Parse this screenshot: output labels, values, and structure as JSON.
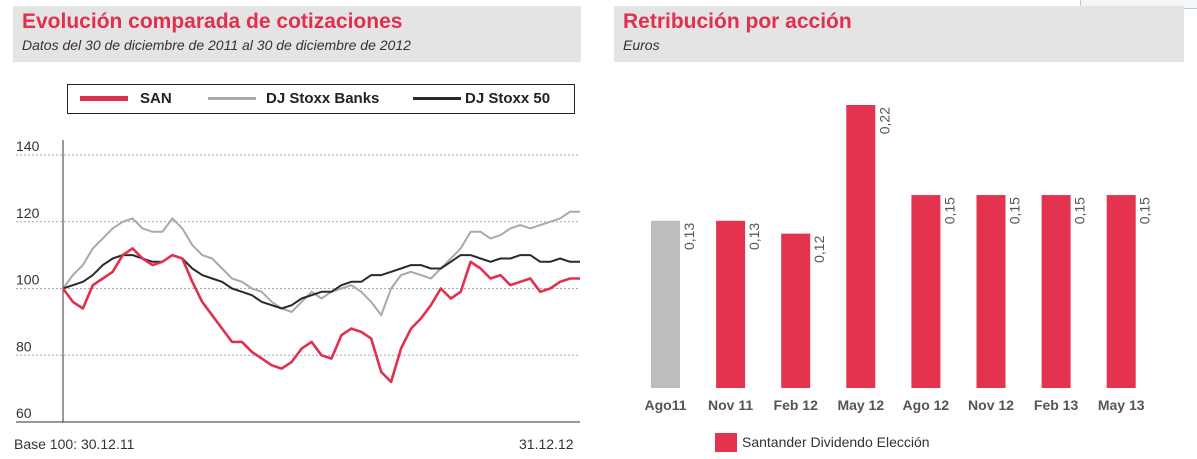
{
  "left_panel": {
    "title": "Evolución comparada de cotizaciones",
    "subtitle": "Datos del 30 de diciembre de 2011 al 30 de diciembre de 2012",
    "footer_left": "Base 100: 30.12.11",
    "footer_right": "31.12.12"
  },
  "right_panel": {
    "title": "Retribución por acción",
    "subtitle": "Euros",
    "legend_label": "Santander Dividendo Elección"
  },
  "colors": {
    "san": "#e1304e",
    "banks": "#a9a9a9",
    "stoxx50": "#2a2a2a",
    "bar_grey": "#bdbdbf",
    "bar_red": "#e3334f",
    "title_red": "#e1304e",
    "header_bg": "#e4e4e5"
  },
  "chart_data": [
    {
      "type": "line",
      "title": "Evolución comparada de cotizaciones",
      "subtitle": "Datos del 30 de diciembre de 2011 al 30 de diciembre de 2012",
      "ylim": [
        60,
        140
      ],
      "yticks": [
        60,
        80,
        100,
        120,
        140
      ],
      "grid": true,
      "legend_position": "top",
      "x_start_label": "Base 100: 30.12.11",
      "x_end_label": "31.12.12",
      "x_unit": "week",
      "x": [
        0,
        1,
        2,
        3,
        4,
        5,
        6,
        7,
        8,
        9,
        10,
        11,
        12,
        13,
        14,
        15,
        16,
        17,
        18,
        19,
        20,
        21,
        22,
        23,
        24,
        25,
        26,
        27,
        28,
        29,
        30,
        31,
        32,
        33,
        34,
        35,
        36,
        37,
        38,
        39,
        40,
        41,
        42,
        43,
        44,
        45,
        46,
        47,
        48,
        49,
        50,
        51,
        52
      ],
      "series": [
        {
          "name": "SAN",
          "values": [
            100,
            96,
            94,
            101,
            103,
            105,
            110,
            112,
            109,
            107,
            108,
            110,
            109,
            102,
            96,
            92,
            88,
            84,
            84,
            81,
            79,
            77,
            76,
            78,
            82,
            84,
            80,
            79,
            86,
            88,
            87,
            85,
            75,
            72,
            82,
            88,
            91,
            95,
            100,
            97,
            99,
            108,
            106,
            103,
            104,
            101,
            102,
            103,
            99,
            100,
            102,
            103,
            103
          ]
        },
        {
          "name": "DJ Stoxx Banks",
          "values": [
            100,
            104,
            107,
            112,
            115,
            118,
            120,
            121,
            118,
            117,
            117,
            121,
            118,
            113,
            110,
            109,
            106,
            103,
            102,
            100,
            99,
            96,
            94,
            93,
            96,
            99,
            97,
            99,
            100,
            101,
            99,
            96,
            92,
            100,
            104,
            105,
            104,
            103,
            106,
            109,
            112,
            117,
            117,
            115,
            116,
            118,
            119,
            118,
            119,
            120,
            121,
            123,
            123
          ]
        },
        {
          "name": "DJ Stoxx 50",
          "values": [
            100,
            101,
            102,
            104,
            107,
            109,
            110,
            110,
            109,
            108,
            108,
            110,
            109,
            106,
            104,
            103,
            102,
            100,
            99,
            98,
            96,
            95,
            94,
            95,
            97,
            98,
            99,
            99,
            101,
            102,
            102,
            104,
            104,
            105,
            106,
            107,
            107,
            106,
            106,
            108,
            110,
            110,
            109,
            108,
            109,
            109,
            110,
            110,
            108,
            108,
            109,
            108,
            108
          ]
        }
      ]
    },
    {
      "type": "bar",
      "title": "Retribución por acción",
      "subtitle": "Euros",
      "categories": [
        "Ago11",
        "Nov 11",
        "Feb 12",
        "May 12",
        "Ago 12",
        "Nov 12",
        "Feb 13",
        "May 13"
      ],
      "values": [
        0.13,
        0.13,
        0.12,
        0.22,
        0.15,
        0.15,
        0.15,
        0.15
      ],
      "value_labels": [
        "0,13",
        "0,13",
        "0,12",
        "0,22",
        "0,15",
        "0,15",
        "0,15",
        "0,15"
      ],
      "bar_colors": [
        "grey",
        "red",
        "red",
        "red",
        "red",
        "red",
        "red",
        "red"
      ],
      "series": [
        {
          "name": "Santander Dividendo Elección"
        }
      ],
      "legend_position": "bottom-left",
      "grid": false
    }
  ]
}
